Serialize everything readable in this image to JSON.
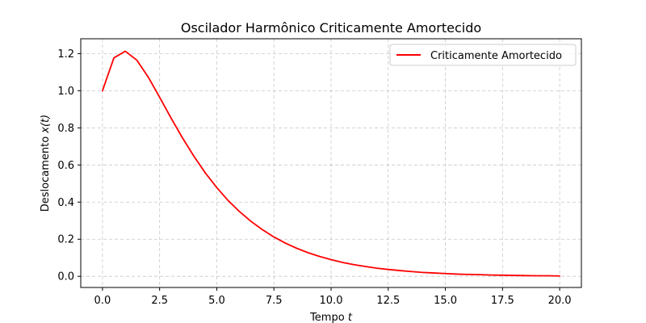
{
  "chart_data": {
    "type": "line",
    "title": "Oscilador Harmônico Criticamente Amortecido",
    "xlabel": "Tempo ",
    "xlabel_var": "t",
    "ylabel": "Deslocamento ",
    "ylabel_var": "x(t)",
    "xlim": [
      -0.95,
      20.95
    ],
    "ylim": [
      -0.06,
      1.28
    ],
    "xticks": [
      0.0,
      2.5,
      5.0,
      7.5,
      10.0,
      12.5,
      15.0,
      17.5,
      20.0
    ],
    "xtick_labels": [
      "0.0",
      "2.5",
      "5.0",
      "7.5",
      "10.0",
      "12.5",
      "15.0",
      "17.5",
      "20.0"
    ],
    "yticks": [
      0.0,
      0.2,
      0.4,
      0.6,
      0.8,
      1.0,
      1.2
    ],
    "ytick_labels": [
      "0.0",
      "0.2",
      "0.4",
      "0.6",
      "0.8",
      "1.0",
      "1.2"
    ],
    "grid": true,
    "legend_position": "top-right",
    "series": [
      {
        "name": "Criticamente Amortecido",
        "color": "#ff0000",
        "x": [
          0,
          0.5,
          1,
          1.5,
          2,
          2.5,
          3,
          3.5,
          4,
          4.5,
          5,
          5.5,
          6,
          6.5,
          7,
          7.5,
          8,
          8.5,
          9,
          9.5,
          10,
          10.5,
          11,
          11.5,
          12,
          12.5,
          13,
          13.5,
          14,
          14.5,
          15,
          15.5,
          16,
          16.5,
          17,
          17.5,
          18,
          18.5,
          19,
          19.5,
          20
        ],
        "y": [
          1.0,
          1.177,
          1.213,
          1.165,
          1.074,
          0.965,
          0.853,
          0.746,
          0.647,
          0.557,
          0.478,
          0.408,
          0.348,
          0.296,
          0.251,
          0.212,
          0.179,
          0.151,
          0.127,
          0.107,
          0.09,
          0.075,
          0.063,
          0.053,
          0.044,
          0.037,
          0.031,
          0.026,
          0.021,
          0.018,
          0.015,
          0.012,
          0.01,
          0.009,
          0.007,
          0.006,
          0.005,
          0.004,
          0.003,
          0.003,
          0.002
        ]
      }
    ]
  }
}
